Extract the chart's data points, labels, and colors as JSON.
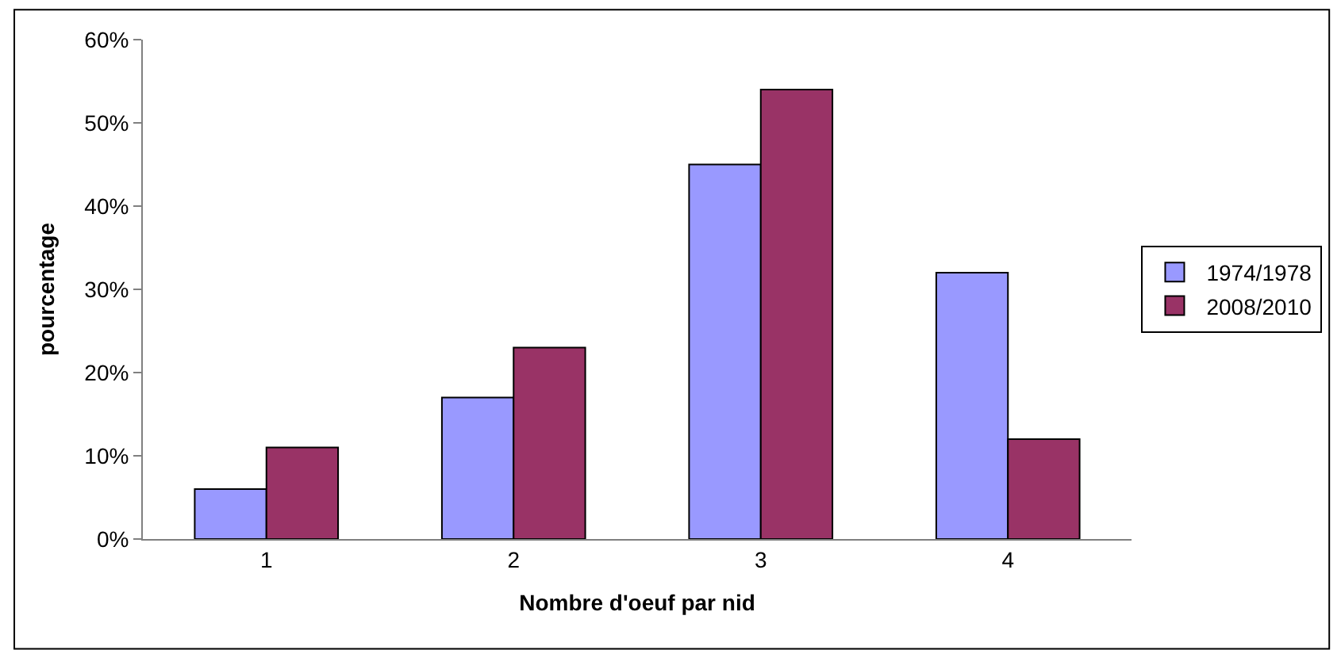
{
  "chart_data": {
    "type": "bar",
    "xlabel": "Nombre d'oeuf par nid",
    "ylabel": "pourcentage",
    "categories": [
      "1",
      "2",
      "3",
      "4"
    ],
    "series": [
      {
        "name": "1974/1978",
        "color": "#9999ff",
        "values": [
          6,
          17,
          45,
          32
        ]
      },
      {
        "name": "2008/2010",
        "color": "#993366",
        "values": [
          11,
          23,
          54,
          12
        ]
      }
    ],
    "ylim": [
      0,
      60
    ],
    "yticks": [
      {
        "value": 0,
        "label": "0%"
      },
      {
        "value": 10,
        "label": "10%"
      },
      {
        "value": 20,
        "label": "20%"
      },
      {
        "value": 30,
        "label": "30%"
      },
      {
        "value": 40,
        "label": "40%"
      },
      {
        "value": 50,
        "label": "50%"
      },
      {
        "value": 60,
        "label": "60%"
      }
    ],
    "grid": false,
    "legend": "right"
  }
}
